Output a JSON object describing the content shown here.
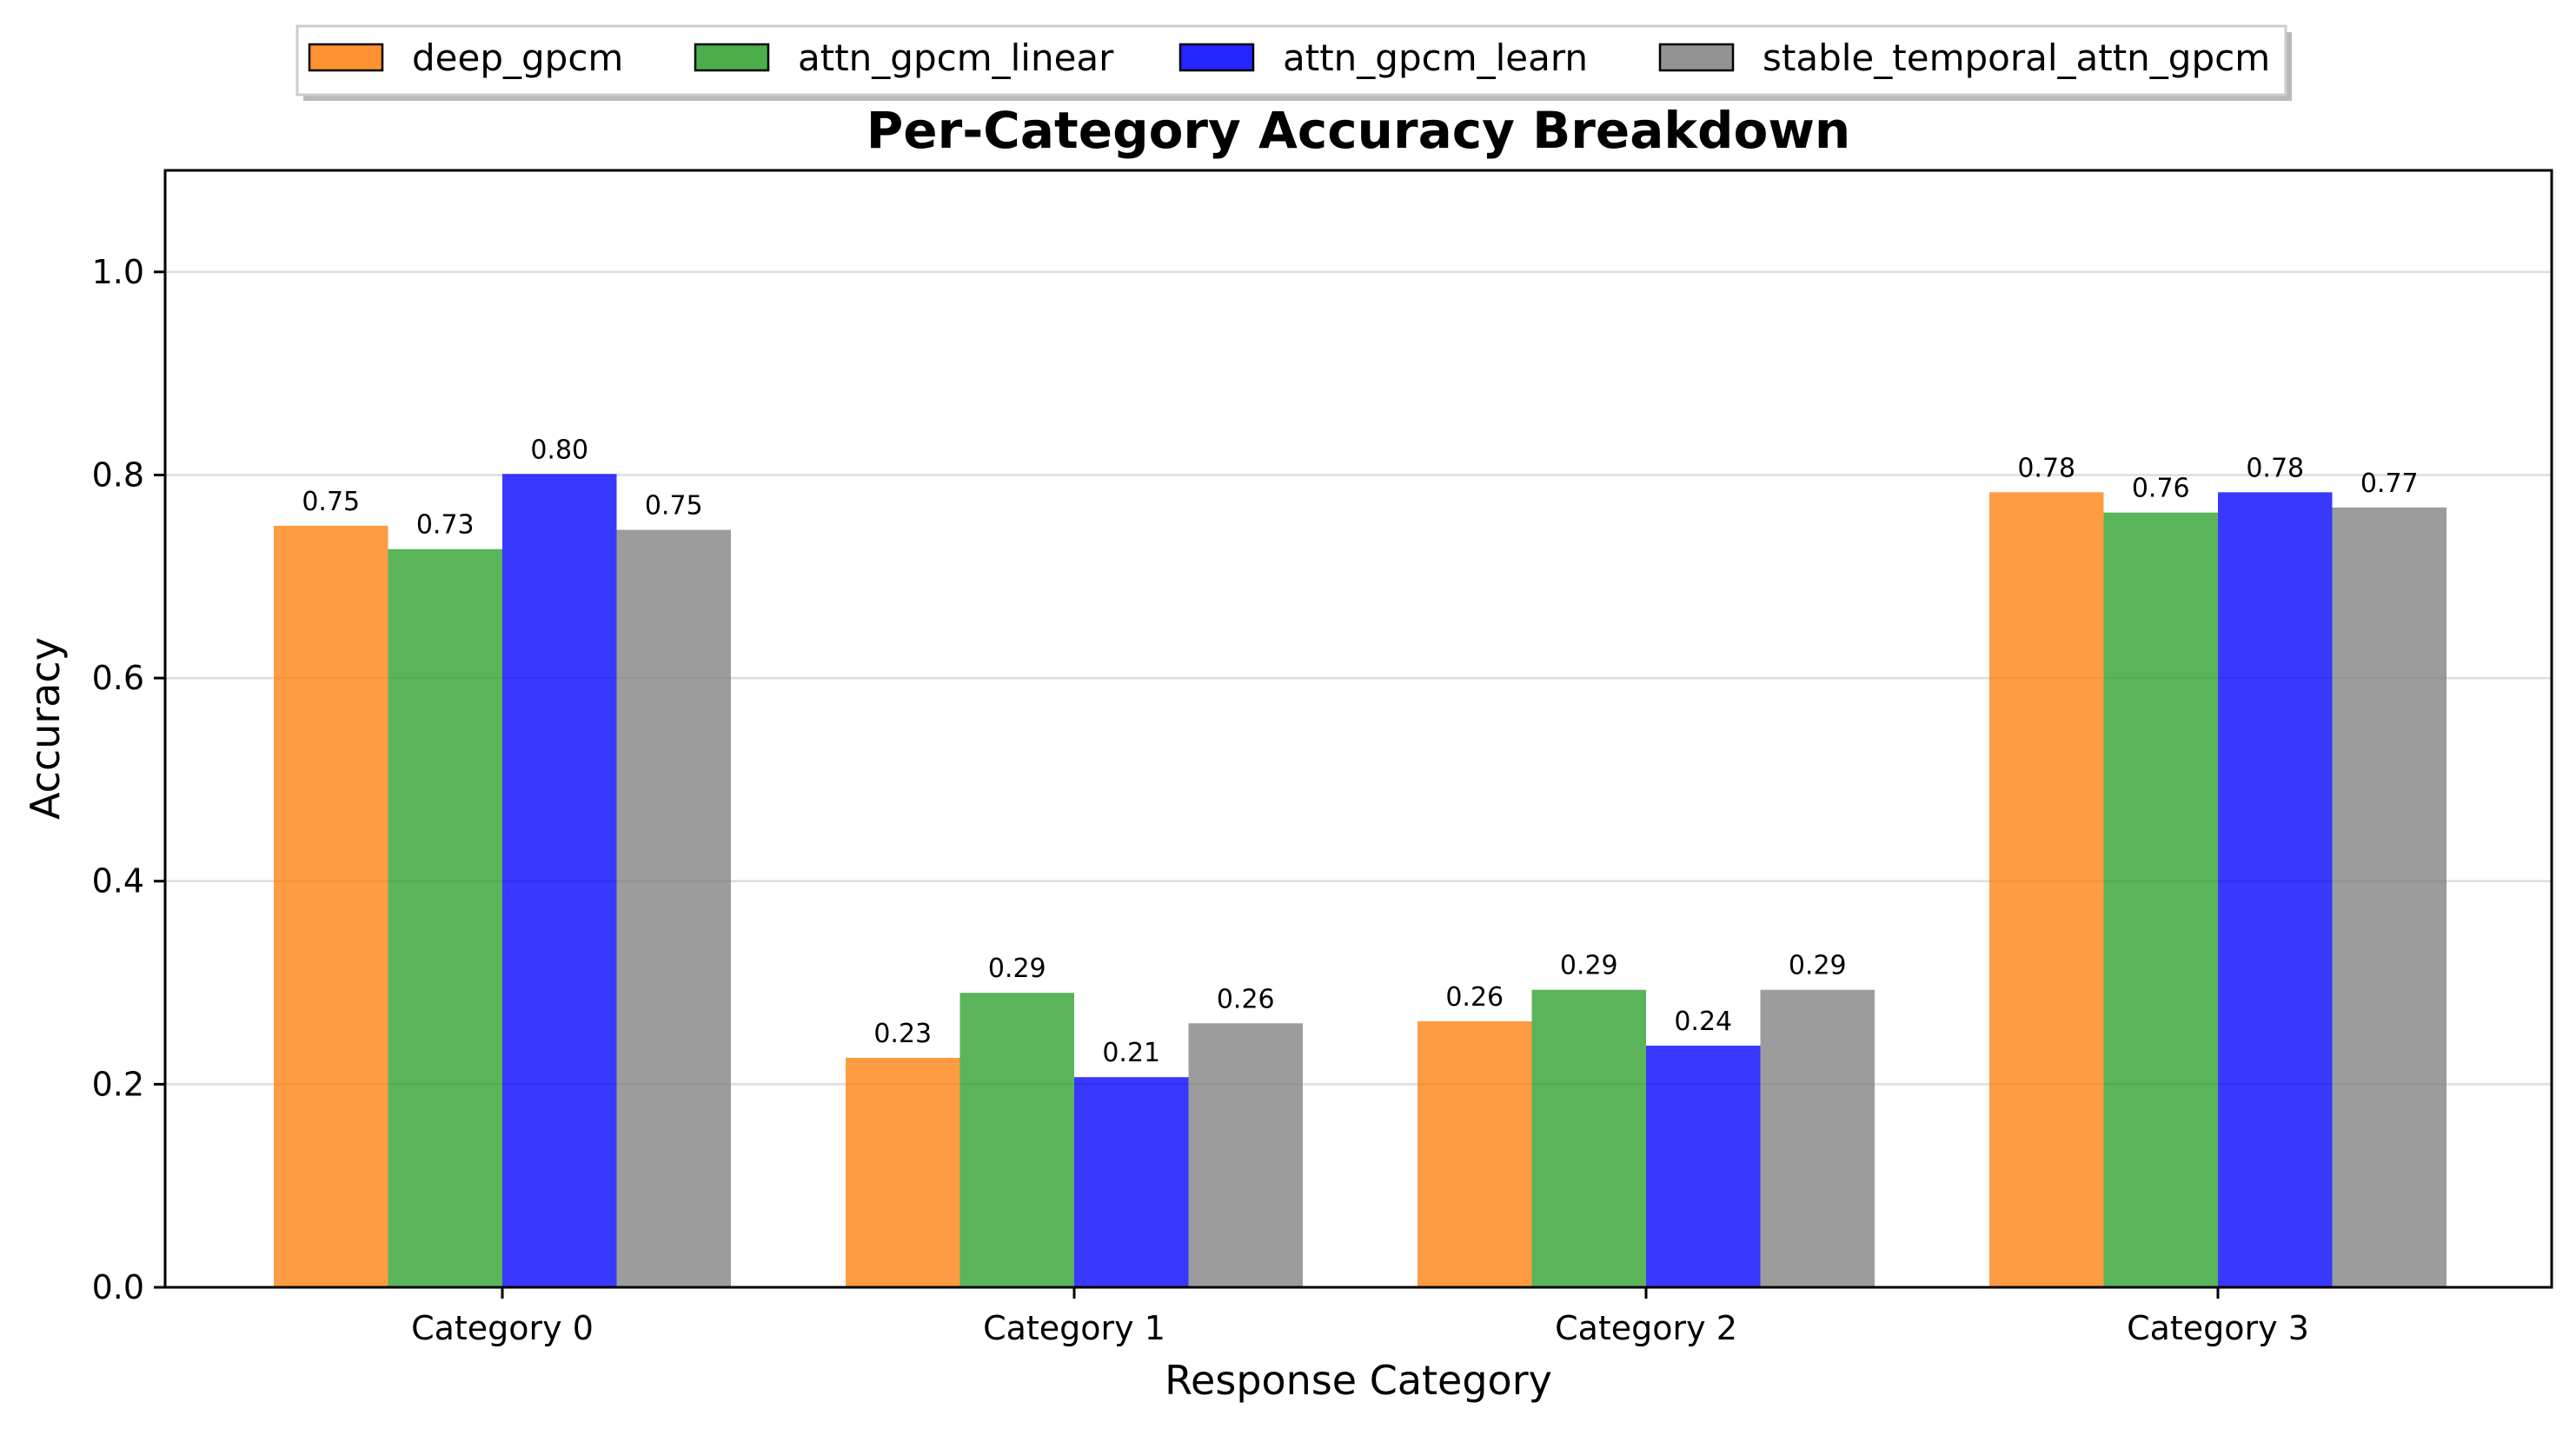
{
  "chart_data": {
    "type": "bar",
    "title": "Per-Category Accuracy Breakdown",
    "xlabel": "Response Category",
    "ylabel": "Accuracy",
    "categories": [
      "Category 0",
      "Category 1",
      "Category 2",
      "Category 3"
    ],
    "ylim": [
      0,
      1.1
    ],
    "yticks": [
      0.0,
      0.2,
      0.4,
      0.6,
      0.8,
      1.0
    ],
    "ytick_labels": [
      "0.0",
      "0.2",
      "0.4",
      "0.6",
      "0.8",
      "1.0"
    ],
    "grid": "horizontal",
    "legend_position": "top-center",
    "series": [
      {
        "name": "deep_gpcm",
        "color": "#ff7f0e",
        "values": [
          0.75,
          0.226,
          0.262,
          0.783
        ],
        "labels": [
          "0.75",
          "0.23",
          "0.26",
          "0.78"
        ]
      },
      {
        "name": "attn_gpcm_linear",
        "color": "#2ca02c",
        "values": [
          0.727,
          0.29,
          0.293,
          0.763
        ],
        "labels": [
          "0.73",
          "0.29",
          "0.29",
          "0.76"
        ]
      },
      {
        "name": "attn_gpcm_learn",
        "color": "#0000ff",
        "values": [
          0.801,
          0.207,
          0.238,
          0.783
        ],
        "labels": [
          "0.80",
          "0.21",
          "0.24",
          "0.78"
        ]
      },
      {
        "name": "stable_temporal_attn_gpcm",
        "color": "#808080",
        "values": [
          0.746,
          0.26,
          0.293,
          0.768
        ],
        "labels": [
          "0.75",
          "0.26",
          "0.29",
          "0.77"
        ]
      }
    ]
  }
}
